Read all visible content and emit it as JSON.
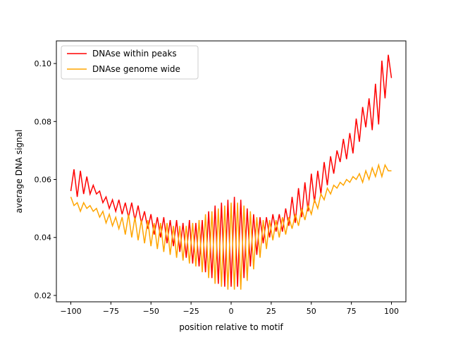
{
  "chart_data": {
    "type": "line",
    "title": "",
    "xlabel": "position relative to motif",
    "ylabel": "average DNA signal",
    "xlim": [
      -109,
      109
    ],
    "ylim": [
      0.0178,
      0.1078
    ],
    "xticks": [
      -100,
      -75,
      -50,
      -25,
      0,
      25,
      50,
      75,
      100
    ],
    "xtick_labels": [
      "−100",
      "−75",
      "−50",
      "−25",
      "0",
      "25",
      "50",
      "75",
      "100"
    ],
    "yticks": [
      0.02,
      0.04,
      0.06,
      0.08,
      0.1
    ],
    "ytick_labels": [
      "0.02",
      "0.04",
      "0.06",
      "0.08",
      "0.10"
    ],
    "grid": false,
    "legend_position": "top-left",
    "x": [
      -100,
      -98,
      -96,
      -94,
      -92,
      -90,
      -88,
      -86,
      -84,
      -82,
      -80,
      -78,
      -76,
      -74,
      -72,
      -70,
      -68,
      -66,
      -64,
      -62,
      -60,
      -58,
      -56,
      -54,
      -52,
      -50,
      -48,
      -46,
      -44,
      -42,
      -40,
      -38,
      -36,
      -34,
      -32,
      -30,
      -28,
      -26,
      -24,
      -22,
      -20,
      -18,
      -16,
      -14,
      -12,
      -10,
      -8,
      -6,
      -4,
      -2,
      0,
      2,
      4,
      6,
      8,
      10,
      12,
      14,
      16,
      18,
      20,
      22,
      24,
      26,
      28,
      30,
      32,
      34,
      36,
      38,
      40,
      42,
      44,
      46,
      48,
      50,
      52,
      54,
      56,
      58,
      60,
      62,
      64,
      66,
      68,
      70,
      72,
      74,
      76,
      78,
      80,
      82,
      84,
      86,
      88,
      90,
      92,
      94,
      96,
      98,
      100
    ],
    "series": [
      {
        "name": "DNAse within peaks",
        "color": "#ff0000",
        "values": [
          0.056,
          0.0635,
          0.054,
          0.063,
          0.055,
          0.061,
          0.055,
          0.058,
          0.055,
          0.056,
          0.052,
          0.054,
          0.05,
          0.053,
          0.049,
          0.053,
          0.048,
          0.052,
          0.047,
          0.052,
          0.046,
          0.051,
          0.045,
          0.049,
          0.043,
          0.048,
          0.041,
          0.047,
          0.04,
          0.047,
          0.038,
          0.046,
          0.037,
          0.046,
          0.035,
          0.045,
          0.033,
          0.046,
          0.031,
          0.045,
          0.03,
          0.046,
          0.028,
          0.049,
          0.026,
          0.051,
          0.024,
          0.052,
          0.023,
          0.053,
          0.023,
          0.054,
          0.023,
          0.053,
          0.026,
          0.05,
          0.03,
          0.048,
          0.034,
          0.047,
          0.038,
          0.047,
          0.04,
          0.048,
          0.042,
          0.048,
          0.042,
          0.05,
          0.044,
          0.054,
          0.045,
          0.057,
          0.047,
          0.059,
          0.049,
          0.062,
          0.052,
          0.063,
          0.055,
          0.066,
          0.058,
          0.068,
          0.062,
          0.07,
          0.066,
          0.074,
          0.067,
          0.076,
          0.069,
          0.081,
          0.073,
          0.085,
          0.078,
          0.088,
          0.077,
          0.093,
          0.079,
          0.101,
          0.088,
          0.103,
          0.095
        ]
      },
      {
        "name": "DNAse genome wide",
        "color": "#ffa500",
        "values": [
          0.054,
          0.051,
          0.052,
          0.049,
          0.052,
          0.05,
          0.051,
          0.049,
          0.05,
          0.047,
          0.049,
          0.045,
          0.048,
          0.044,
          0.047,
          0.043,
          0.047,
          0.041,
          0.048,
          0.04,
          0.047,
          0.039,
          0.046,
          0.038,
          0.046,
          0.037,
          0.045,
          0.036,
          0.045,
          0.035,
          0.045,
          0.034,
          0.044,
          0.033,
          0.044,
          0.032,
          0.044,
          0.031,
          0.045,
          0.03,
          0.046,
          0.028,
          0.048,
          0.026,
          0.049,
          0.024,
          0.05,
          0.023,
          0.051,
          0.022,
          0.052,
          0.022,
          0.052,
          0.022,
          0.051,
          0.025,
          0.049,
          0.029,
          0.047,
          0.033,
          0.046,
          0.036,
          0.046,
          0.039,
          0.046,
          0.04,
          0.047,
          0.041,
          0.047,
          0.043,
          0.048,
          0.044,
          0.05,
          0.046,
          0.051,
          0.048,
          0.053,
          0.05,
          0.055,
          0.053,
          0.057,
          0.055,
          0.058,
          0.057,
          0.059,
          0.058,
          0.06,
          0.059,
          0.061,
          0.06,
          0.062,
          0.059,
          0.063,
          0.06,
          0.064,
          0.061,
          0.065,
          0.061,
          0.065,
          0.063,
          0.063
        ]
      }
    ]
  }
}
